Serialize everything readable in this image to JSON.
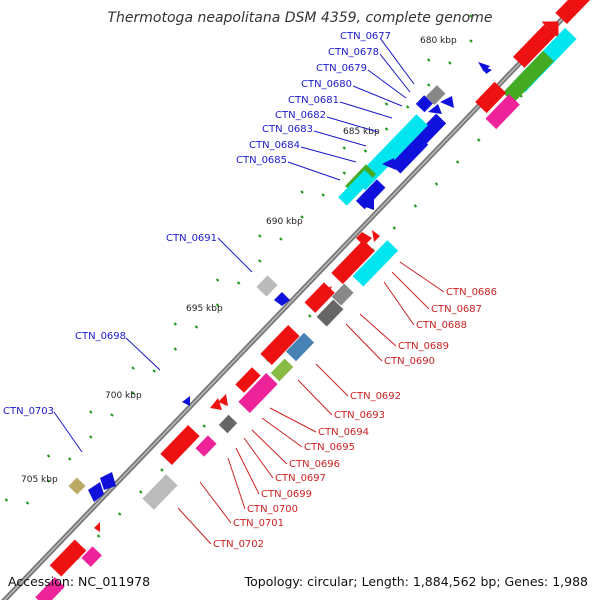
{
  "title": "Thermotoga neapolitana DSM 4359, complete genome",
  "footer": {
    "accession": "Accession: NC_011978",
    "summary": "Topology: circular; Length: 1,884,562 bp; Genes: 1,988"
  },
  "kbp_ticks": [
    "680 kbp",
    "685 kbp",
    "690 kbp",
    "695 kbp",
    "700 kbp",
    "705 kbp"
  ],
  "left_labels": [
    "CTN_0677",
    "CTN_0678",
    "CTN_0679",
    "CTN_0680",
    "CTN_0681",
    "CTN_0682",
    "CTN_0683",
    "CTN_0684",
    "CTN_0685",
    "CTN_0691",
    "CTN_0698",
    "CTN_0703"
  ],
  "right_labels": [
    "CTN_0686",
    "CTN_0687",
    "CTN_0688",
    "CTN_0689",
    "CTN_0690",
    "CTN_0692",
    "CTN_0693",
    "CTN_0694",
    "CTN_0695",
    "CTN_0696",
    "CTN_0697",
    "CTN_0699",
    "CTN_0700",
    "CTN_0701",
    "CTN_0702"
  ],
  "colors": {
    "left_label": "#1a1acc",
    "right_label": "#cc2222",
    "reverse_strand": "#1010dd",
    "forward_strand": "#ee1111",
    "backbone": "#666666",
    "cyan": "#00e5ee",
    "green": "#44aa22",
    "magenta": "#ee2299",
    "gray": "#aaaaaa",
    "dark_gray": "#666666",
    "steel_blue": "#4682b4",
    "olive": "#bbaa66",
    "tick": "#229922"
  }
}
